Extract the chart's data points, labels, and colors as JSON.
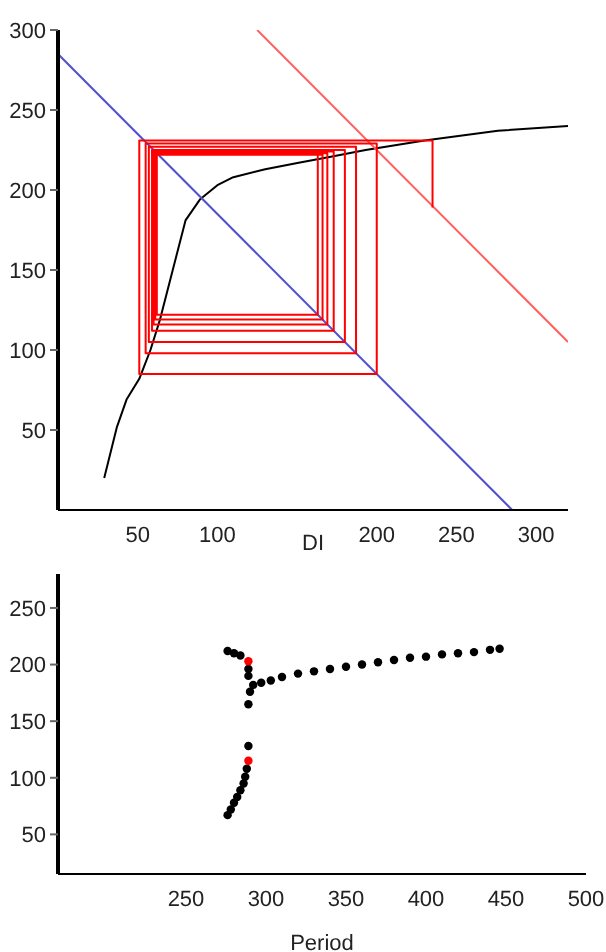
{
  "chart_data": [
    {
      "type": "line",
      "xlabel": "DI",
      "xlim": [
        0,
        320
      ],
      "ylim": [
        0,
        300
      ],
      "xticks": [
        50,
        100,
        200,
        250,
        300
      ],
      "yticks": [
        50,
        100,
        150,
        200,
        250,
        300
      ],
      "grid": false,
      "marker": "none",
      "line_style": "solid",
      "series": [
        {
          "color": "#000000",
          "x": [
            29,
            37,
            43,
            51,
            58,
            64,
            72,
            80,
            89,
            100,
            110,
            130,
            151,
            172,
            193,
            230,
            276,
            320
          ],
          "values": [
            20,
            52,
            69,
            82,
            100,
            119,
            150,
            181,
            194,
            203,
            208,
            213,
            217,
            221,
            225,
            231,
            237,
            240
          ]
        },
        {
          "color": "#5050d0",
          "x": [
            0,
            285
          ],
          "values": [
            285,
            0
          ]
        },
        {
          "color": "#ff6060",
          "x": [
            125,
            320
          ],
          "values": [
            300,
            105
          ]
        },
        {
          "color": "#ff0000",
          "x": [
            235,
            235,
            51,
            51,
            200,
            200,
            55,
            55,
            187,
            187,
            57,
            57,
            180,
            180,
            59,
            59,
            173,
            173,
            60,
            60,
            169,
            169,
            61,
            61,
            166,
            166,
            62,
            62,
            163,
            163,
            62.5
          ],
          "values": [
            189,
            231,
            231,
            85,
            85,
            229,
            229,
            98,
            98,
            227,
            227,
            105,
            105,
            225,
            225,
            112,
            112,
            224,
            224,
            116,
            116,
            223,
            223,
            119,
            119,
            222,
            222,
            122,
            122,
            222,
            222
          ]
        }
      ]
    },
    {
      "type": "scatter",
      "xlabel": "Period",
      "xlim": [
        170,
        500
      ],
      "ylim": [
        15,
        280
      ],
      "xticks": [
        250,
        300,
        350,
        400,
        450,
        500
      ],
      "yticks": [
        50,
        100,
        150,
        200,
        250
      ],
      "grid": false,
      "marker": "circle",
      "series": [
        {
          "color": "#000000",
          "x": [
            276,
            280,
            284,
            289,
            289,
            290,
            289,
            289,
            276,
            278,
            280,
            282,
            284,
            286,
            287,
            288,
            292,
            297,
            303,
            310,
            320,
            330,
            340,
            350,
            360,
            370,
            380,
            390,
            400,
            410,
            420,
            430,
            440,
            446
          ],
          "values": [
            212,
            210,
            208,
            196,
            190,
            176,
            165,
            128,
            67,
            72,
            78,
            83,
            89,
            95,
            101,
            108,
            182,
            184,
            186,
            189,
            192,
            194,
            196,
            198,
            200,
            202,
            204,
            206,
            207,
            209,
            210,
            211,
            213,
            214
          ]
        },
        {
          "color": "#ff0000",
          "x": [
            289,
            289
          ],
          "values": [
            203,
            115
          ]
        }
      ]
    }
  ]
}
